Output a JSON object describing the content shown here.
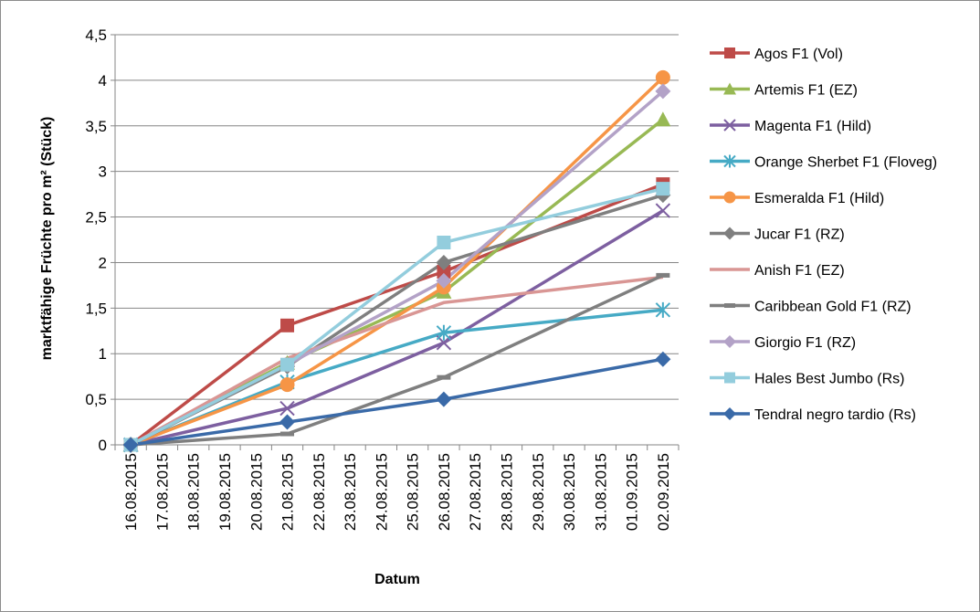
{
  "chart_data": {
    "type": "line",
    "title": "",
    "xlabel": "Datum",
    "ylabel": "marktfähige Früchte pro m² (Stück)",
    "ylim": [
      0,
      4.5
    ],
    "y_ticks": [
      "0",
      "0,5",
      "1",
      "1,5",
      "2",
      "2,5",
      "3",
      "3,5",
      "4",
      "4,5"
    ],
    "x_dates": [
      "16.08.2015",
      "17.08.2015",
      "18.08.2015",
      "19.08.2015",
      "20.08.2015",
      "21.08.2015",
      "22.08.2015",
      "23.08.2015",
      "24.08.2015",
      "25.08.2015",
      "26.08.2015",
      "27.08.2015",
      "28.08.2015",
      "29.08.2015",
      "30.08.2015",
      "31.08.2015",
      "01.09.2015",
      "02.09.2015"
    ],
    "grid": "horizontal",
    "legend_position": "right",
    "x": [
      "16.08.2015",
      "21.08.2015",
      "26.08.2015",
      "02.09.2015"
    ],
    "series": [
      {
        "name": "Agos F1 (Vol)",
        "color": "#be4b48",
        "marker": "square",
        "values": [
          0,
          1.31,
          1.9,
          2.86
        ]
      },
      {
        "name": "Artemis F1 (EZ)",
        "color": "#98b954",
        "marker": "triangle",
        "values": [
          0,
          0.9,
          1.68,
          3.57
        ]
      },
      {
        "name": "Magenta F1 (Hild)",
        "color": "#7d5fa0",
        "marker": "x",
        "values": [
          0,
          0.4,
          1.12,
          2.57
        ]
      },
      {
        "name": "Orange Sherbet F1 (Floveg)",
        "color": "#46aac5",
        "marker": "star",
        "values": [
          0,
          0.69,
          1.23,
          1.48
        ]
      },
      {
        "name": "Esmeralda F1 (Hild)",
        "color": "#f69546",
        "marker": "circle",
        "values": [
          0,
          0.66,
          1.73,
          4.03
        ]
      },
      {
        "name": "Jucar F1 (RZ)",
        "color": "#7f7f7f",
        "marker": "diamond",
        "values": [
          0,
          0.86,
          2.0,
          2.74
        ]
      },
      {
        "name": "Anish F1 (EZ)",
        "color": "#d99694",
        "marker": "none",
        "values": [
          0,
          0.95,
          1.56,
          1.84
        ]
      },
      {
        "name": "Caribbean Gold F1 (RZ)",
        "color": "#7f7f7f",
        "marker": "dash",
        "values": [
          0,
          0.12,
          0.74,
          1.86
        ]
      },
      {
        "name": "Giorgio F1 (RZ)",
        "color": "#b3a2c7",
        "marker": "diamond",
        "values": [
          0,
          0.88,
          1.8,
          3.88
        ]
      },
      {
        "name": "Hales Best Jumbo (Rs)",
        "color": "#93cddd",
        "marker": "square",
        "values": [
          0,
          0.88,
          2.22,
          2.81
        ]
      },
      {
        "name": "Tendral negro tardio (Rs)",
        "color": "#3a6aa8",
        "marker": "diamond",
        "values": [
          0,
          0.25,
          0.5,
          0.94
        ]
      }
    ]
  }
}
